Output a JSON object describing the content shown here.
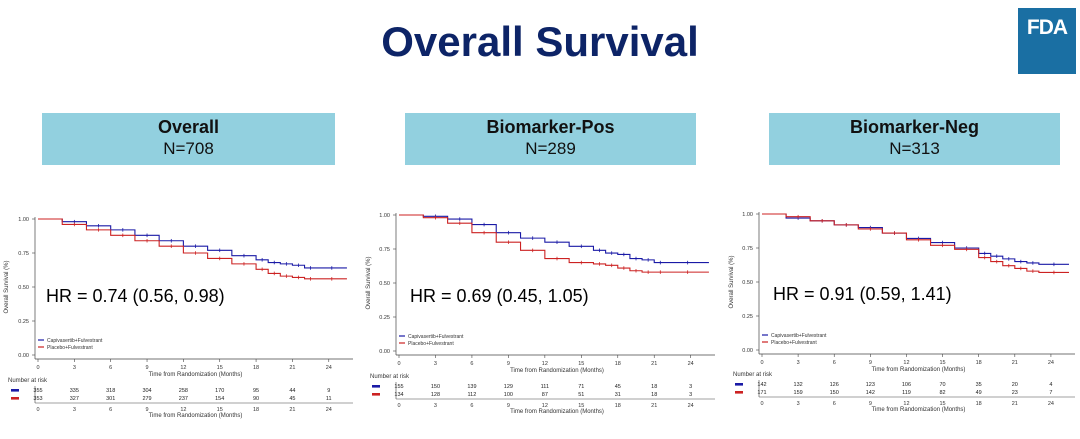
{
  "title": "Overall Survival",
  "logo": "FDA",
  "colors": {
    "treatment": "#1a1aa6",
    "placebo": "#cc2222",
    "header_bg": "#92d0df",
    "title": "#0d2467",
    "logo_bg": "#1a6fa3"
  },
  "panels": [
    {
      "heading": "Overall",
      "n": "N=708",
      "hr": "HR = 0.74 (0.56, 0.98)"
    },
    {
      "heading": "Biomarker-Pos",
      "n": "N=289",
      "hr": "HR = 0.69 (0.45, 1.05)"
    },
    {
      "heading": "Biomarker-Neg",
      "n": "N=313",
      "hr": "HR = 0.91 (0.59, 1.41)"
    }
  ],
  "chart_data": [
    {
      "type": "line",
      "title": "Overall",
      "xlabel": "Time from Randomization (Months)",
      "ylabel": "Overall Survival (%)",
      "xticks": [
        0,
        3,
        6,
        9,
        12,
        15,
        18,
        21,
        24
      ],
      "yticks": [
        0.0,
        0.25,
        0.5,
        0.75,
        1.0
      ],
      "yticklabels": [
        "0.00",
        "0.25",
        "0.50",
        "0.75",
        "1.00"
      ],
      "xlim": [
        0,
        26
      ],
      "ylim": [
        0,
        1
      ],
      "legend": "bottom-left",
      "series": [
        {
          "name": "Capivasertib+Fulvestrant",
          "color": "#1a1aa6",
          "x": [
            0,
            2,
            4,
            6,
            8,
            10,
            12,
            14,
            16,
            18,
            19,
            20,
            21,
            22,
            23,
            25.5
          ],
          "y": [
            1.0,
            0.98,
            0.95,
            0.92,
            0.88,
            0.84,
            0.8,
            0.77,
            0.73,
            0.7,
            0.68,
            0.67,
            0.66,
            0.64,
            0.64,
            0.64
          ]
        },
        {
          "name": "Placebo+Fulvestrant",
          "color": "#cc2222",
          "x": [
            0,
            2,
            4,
            6,
            8,
            10,
            12,
            14,
            16,
            18,
            19,
            20,
            21,
            22,
            23,
            25.5
          ],
          "y": [
            1.0,
            0.96,
            0.92,
            0.88,
            0.84,
            0.8,
            0.75,
            0.71,
            0.67,
            0.63,
            0.6,
            0.58,
            0.57,
            0.56,
            0.56,
            0.56
          ]
        }
      ],
      "risk_label": "Number at risk",
      "risk_x": [
        0,
        3,
        6,
        9,
        12,
        15,
        18,
        21,
        24
      ],
      "risk": [
        {
          "color": "#1a1aa6",
          "values": [
            "355",
            "335",
            "318",
            "304",
            "258",
            "170",
            "95",
            "44",
            "9"
          ]
        },
        {
          "color": "#cc2222",
          "values": [
            "353",
            "327",
            "301",
            "279",
            "237",
            "154",
            "90",
            "45",
            "11"
          ]
        }
      ]
    },
    {
      "type": "line",
      "title": "Biomarker-Pos",
      "xlabel": "Time from Randomization (Months)",
      "ylabel": "Overall Survival (%)",
      "xticks": [
        0,
        3,
        6,
        9,
        12,
        15,
        18,
        21,
        24
      ],
      "yticks": [
        0.0,
        0.25,
        0.5,
        0.75,
        1.0
      ],
      "yticklabels": [
        "0.00",
        "0.25",
        "0.50",
        "0.75",
        "1.00"
      ],
      "xlim": [
        0,
        26
      ],
      "ylim": [
        0,
        1
      ],
      "legend": "bottom-left",
      "series": [
        {
          "name": "Capivasertib+Fulvestrant",
          "color": "#1a1aa6",
          "x": [
            0,
            2,
            4,
            6,
            8,
            10,
            12,
            14,
            16,
            17,
            18,
            19,
            20,
            21,
            22,
            25.5
          ],
          "y": [
            1.0,
            0.99,
            0.97,
            0.93,
            0.87,
            0.83,
            0.8,
            0.77,
            0.74,
            0.72,
            0.71,
            0.68,
            0.67,
            0.65,
            0.65,
            0.65
          ]
        },
        {
          "name": "Placebo+Fulvestrant",
          "color": "#cc2222",
          "x": [
            0,
            2,
            4,
            6,
            8,
            10,
            12,
            14,
            16,
            17,
            18,
            19,
            20,
            21,
            22,
            25.5
          ],
          "y": [
            1.0,
            0.98,
            0.94,
            0.87,
            0.8,
            0.74,
            0.68,
            0.65,
            0.64,
            0.63,
            0.61,
            0.59,
            0.58,
            0.58,
            0.58,
            0.58
          ]
        }
      ],
      "risk_label": "Number at risk",
      "risk_x": [
        0,
        3,
        6,
        9,
        12,
        15,
        18,
        21,
        24
      ],
      "risk": [
        {
          "color": "#1a1aa6",
          "values": [
            "155",
            "150",
            "139",
            "129",
            "111",
            "71",
            "45",
            "18",
            "3"
          ]
        },
        {
          "color": "#cc2222",
          "values": [
            "134",
            "128",
            "112",
            "100",
            "87",
            "51",
            "31",
            "18",
            "3"
          ]
        }
      ]
    },
    {
      "type": "line",
      "title": "Biomarker-Neg",
      "xlabel": "Time from Randomization (Months)",
      "ylabel": "Overall Survival (%)",
      "xticks": [
        0,
        3,
        6,
        9,
        12,
        15,
        18,
        21,
        24
      ],
      "yticks": [
        0.0,
        0.25,
        0.5,
        0.75,
        1.0
      ],
      "yticklabels": [
        "0.00",
        "0.25",
        "0.50",
        "0.75",
        "1.00"
      ],
      "xlim": [
        0,
        26
      ],
      "ylim": [
        0,
        1
      ],
      "legend": "bottom-left",
      "series": [
        {
          "name": "Capivasertib+Fulvestrant",
          "color": "#1a1aa6",
          "x": [
            0,
            2,
            4,
            6,
            8,
            10,
            12,
            14,
            16,
            18,
            19,
            20,
            21,
            22,
            23,
            25.5
          ],
          "y": [
            1.0,
            0.97,
            0.95,
            0.92,
            0.9,
            0.86,
            0.82,
            0.79,
            0.75,
            0.71,
            0.69,
            0.67,
            0.65,
            0.64,
            0.63,
            0.63
          ]
        },
        {
          "name": "Placebo+Fulvestrant",
          "color": "#cc2222",
          "x": [
            0,
            2,
            4,
            6,
            8,
            10,
            12,
            14,
            16,
            18,
            19,
            20,
            21,
            22,
            23,
            25.5
          ],
          "y": [
            1.0,
            0.98,
            0.95,
            0.92,
            0.89,
            0.86,
            0.81,
            0.77,
            0.74,
            0.68,
            0.65,
            0.62,
            0.6,
            0.58,
            0.57,
            0.57
          ]
        }
      ],
      "risk_label": "Number at risk",
      "risk_x": [
        0,
        3,
        6,
        9,
        12,
        15,
        18,
        21,
        24
      ],
      "risk": [
        {
          "color": "#1a1aa6",
          "values": [
            "142",
            "132",
            "126",
            "123",
            "106",
            "70",
            "35",
            "20",
            "4"
          ]
        },
        {
          "color": "#cc2222",
          "values": [
            "171",
            "159",
            "150",
            "142",
            "119",
            "82",
            "49",
            "23",
            "7"
          ]
        }
      ]
    }
  ]
}
